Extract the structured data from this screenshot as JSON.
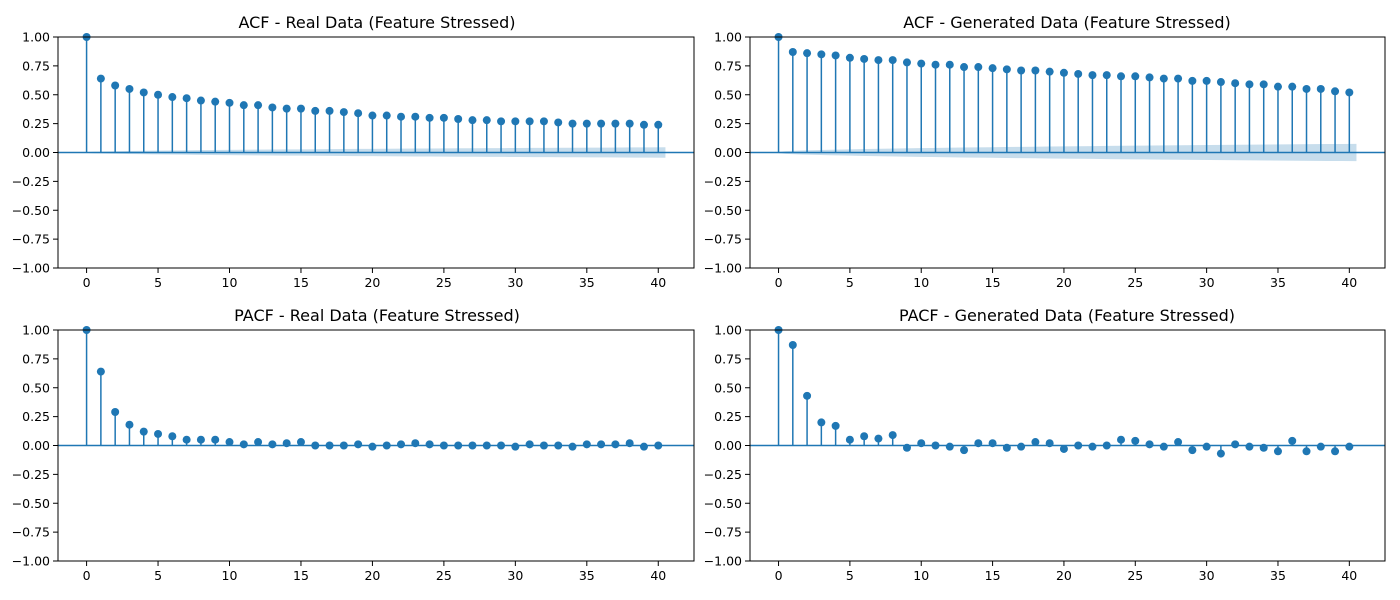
{
  "chart_data": [
    {
      "type": "stem",
      "title": "ACF - Real Data (Feature Stressed)",
      "xlabel": "",
      "ylabel": "",
      "xlim": [
        -2,
        42.5
      ],
      "ylim": [
        -1.0,
        1.0
      ],
      "x_ticks": [
        0,
        5,
        10,
        15,
        20,
        25,
        30,
        35,
        40
      ],
      "y_ticks": [
        "1.00",
        "0.75",
        "0.50",
        "0.25",
        "0.00",
        "−0.25",
        "−0.50",
        "−0.75",
        "−1.00"
      ],
      "y_tick_values": [
        1.0,
        0.75,
        0.5,
        0.25,
        0.0,
        -0.25,
        -0.5,
        -0.75,
        -1.0
      ],
      "grid": false,
      "confidence_band": {
        "start": 0.0,
        "end": 0.045
      },
      "lags": [
        0,
        1,
        2,
        3,
        4,
        5,
        6,
        7,
        8,
        9,
        10,
        11,
        12,
        13,
        14,
        15,
        16,
        17,
        18,
        19,
        20,
        21,
        22,
        23,
        24,
        25,
        26,
        27,
        28,
        29,
        30,
        31,
        32,
        33,
        34,
        35,
        36,
        37,
        38,
        39,
        40
      ],
      "values": [
        1.0,
        0.64,
        0.58,
        0.55,
        0.52,
        0.5,
        0.48,
        0.47,
        0.45,
        0.44,
        0.43,
        0.41,
        0.41,
        0.39,
        0.38,
        0.38,
        0.36,
        0.36,
        0.35,
        0.34,
        0.32,
        0.32,
        0.31,
        0.31,
        0.3,
        0.3,
        0.29,
        0.28,
        0.28,
        0.27,
        0.27,
        0.27,
        0.27,
        0.26,
        0.25,
        0.25,
        0.25,
        0.25,
        0.25,
        0.24,
        0.24
      ]
    },
    {
      "type": "stem",
      "title": "ACF - Generated Data (Feature Stressed)",
      "xlabel": "",
      "ylabel": "",
      "xlim": [
        -2,
        42.5
      ],
      "ylim": [
        -1.0,
        1.0
      ],
      "x_ticks": [
        0,
        5,
        10,
        15,
        20,
        25,
        30,
        35,
        40
      ],
      "y_ticks": [
        "1.00",
        "0.75",
        "0.50",
        "0.25",
        "0.00",
        "−0.25",
        "−0.50",
        "−0.75",
        "−1.00"
      ],
      "y_tick_values": [
        1.0,
        0.75,
        0.5,
        0.25,
        0.0,
        -0.25,
        -0.5,
        -0.75,
        -1.0
      ],
      "grid": false,
      "confidence_band": {
        "start": 0.0,
        "end": 0.075
      },
      "lags": [
        0,
        1,
        2,
        3,
        4,
        5,
        6,
        7,
        8,
        9,
        10,
        11,
        12,
        13,
        14,
        15,
        16,
        17,
        18,
        19,
        20,
        21,
        22,
        23,
        24,
        25,
        26,
        27,
        28,
        29,
        30,
        31,
        32,
        33,
        34,
        35,
        36,
        37,
        38,
        39,
        40
      ],
      "values": [
        1.0,
        0.87,
        0.86,
        0.85,
        0.84,
        0.82,
        0.81,
        0.8,
        0.8,
        0.78,
        0.77,
        0.76,
        0.76,
        0.74,
        0.74,
        0.73,
        0.72,
        0.71,
        0.71,
        0.7,
        0.69,
        0.68,
        0.67,
        0.67,
        0.66,
        0.66,
        0.65,
        0.64,
        0.64,
        0.62,
        0.62,
        0.61,
        0.6,
        0.59,
        0.59,
        0.57,
        0.57,
        0.55,
        0.55,
        0.53,
        0.52
      ]
    },
    {
      "type": "stem",
      "title": "PACF - Real Data (Feature Stressed)",
      "xlabel": "",
      "ylabel": "",
      "xlim": [
        -2,
        42.5
      ],
      "ylim": [
        -1.0,
        1.0
      ],
      "x_ticks": [
        0,
        5,
        10,
        15,
        20,
        25,
        30,
        35,
        40
      ],
      "y_ticks": [
        "1.00",
        "0.75",
        "0.50",
        "0.25",
        "0.00",
        "−0.25",
        "−0.50",
        "−0.75",
        "−1.00"
      ],
      "y_tick_values": [
        1.0,
        0.75,
        0.5,
        0.25,
        0.0,
        -0.25,
        -0.5,
        -0.75,
        -1.0
      ],
      "grid": false,
      "lags": [
        0,
        1,
        2,
        3,
        4,
        5,
        6,
        7,
        8,
        9,
        10,
        11,
        12,
        13,
        14,
        15,
        16,
        17,
        18,
        19,
        20,
        21,
        22,
        23,
        24,
        25,
        26,
        27,
        28,
        29,
        30,
        31,
        32,
        33,
        34,
        35,
        36,
        37,
        38,
        39,
        40
      ],
      "values": [
        1.0,
        0.64,
        0.29,
        0.18,
        0.12,
        0.1,
        0.08,
        0.05,
        0.05,
        0.05,
        0.03,
        0.01,
        0.03,
        0.01,
        0.02,
        0.03,
        0.0,
        0.0,
        0.0,
        0.01,
        -0.01,
        0.0,
        0.01,
        0.02,
        0.01,
        0.0,
        0.0,
        0.0,
        0.0,
        0.0,
        -0.01,
        0.01,
        0.0,
        0.0,
        -0.01,
        0.01,
        0.01,
        0.01,
        0.02,
        -0.01,
        0.0
      ]
    },
    {
      "type": "stem",
      "title": "PACF - Generated Data (Feature Stressed)",
      "xlabel": "",
      "ylabel": "",
      "xlim": [
        -2,
        42.5
      ],
      "ylim": [
        -1.0,
        1.0
      ],
      "x_ticks": [
        0,
        5,
        10,
        15,
        20,
        25,
        30,
        35,
        40
      ],
      "y_ticks": [
        "1.00",
        "0.75",
        "0.50",
        "0.25",
        "0.00",
        "−0.25",
        "−0.50",
        "−0.75",
        "−1.00"
      ],
      "y_tick_values": [
        1.0,
        0.75,
        0.5,
        0.25,
        0.0,
        -0.25,
        -0.5,
        -0.75,
        -1.0
      ],
      "grid": false,
      "lags": [
        0,
        1,
        2,
        3,
        4,
        5,
        6,
        7,
        8,
        9,
        10,
        11,
        12,
        13,
        14,
        15,
        16,
        17,
        18,
        19,
        20,
        21,
        22,
        23,
        24,
        25,
        26,
        27,
        28,
        29,
        30,
        31,
        32,
        33,
        34,
        35,
        36,
        37,
        38,
        39,
        40
      ],
      "values": [
        1.0,
        0.87,
        0.43,
        0.2,
        0.17,
        0.05,
        0.08,
        0.06,
        0.09,
        -0.02,
        0.02,
        0.0,
        -0.01,
        -0.04,
        0.02,
        0.02,
        -0.02,
        -0.01,
        0.03,
        0.02,
        -0.03,
        0.0,
        -0.01,
        0.0,
        0.05,
        0.04,
        0.01,
        -0.01,
        0.03,
        -0.04,
        -0.01,
        -0.07,
        0.01,
        -0.01,
        -0.02,
        -0.05,
        0.04,
        -0.05,
        -0.01,
        -0.05,
        -0.01
      ]
    }
  ],
  "colors": {
    "series": "#1f77b4",
    "band": "#1f77b4",
    "axes": "#000000",
    "background": "#ffffff"
  }
}
